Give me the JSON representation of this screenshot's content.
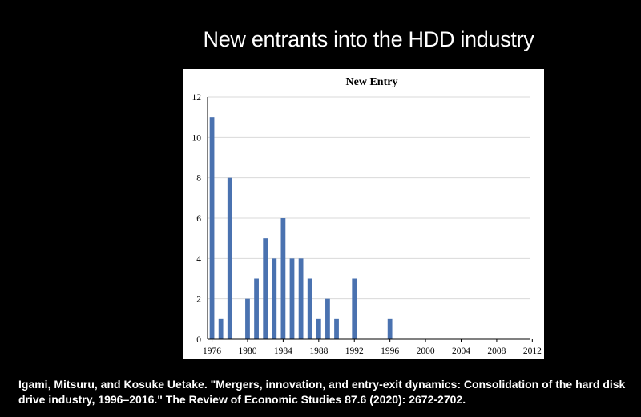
{
  "slide": {
    "title": "New entrants into the HDD industry",
    "citation": "Igami, Mitsuru, and Kosuke Uetake. \"Mergers, innovation, and entry-exit dynamics: Consolidation of the hard disk drive industry, 1996–2016.\" The Review of Economic Studies 87.6 (2020): 2672-2702."
  },
  "colors": {
    "background": "#000000",
    "bar": "#4a72b0",
    "axis": "#000000",
    "grid": "#d9d9d9"
  },
  "chart_data": {
    "type": "bar",
    "title": "New Entry",
    "xlabel": "",
    "ylabel": "",
    "x": [
      1976,
      1977,
      1978,
      1979,
      1980,
      1981,
      1982,
      1983,
      1984,
      1985,
      1986,
      1987,
      1988,
      1989,
      1990,
      1991,
      1992,
      1993,
      1994,
      1995,
      1996,
      1997,
      1998,
      1999,
      2000,
      2001,
      2002,
      2003,
      2004,
      2005,
      2006,
      2007,
      2008,
      2009,
      2010,
      2011,
      2012,
      2013
    ],
    "values": [
      11,
      1,
      8,
      0,
      2,
      3,
      5,
      4,
      6,
      4,
      4,
      3,
      1,
      2,
      1,
      0,
      3,
      0,
      0,
      0,
      1,
      0,
      0,
      0,
      0,
      0,
      0,
      0,
      0,
      0,
      0,
      0,
      0,
      0,
      0,
      0,
      0,
      0
    ],
    "xticks": [
      "1976",
      "1980",
      "1984",
      "1988",
      "1992",
      "1996",
      "2000",
      "2004",
      "2008",
      "2012"
    ],
    "yticks": [
      "0",
      "2",
      "4",
      "6",
      "8",
      "10",
      "12"
    ],
    "ylim": [
      0,
      12
    ],
    "grid": true
  }
}
